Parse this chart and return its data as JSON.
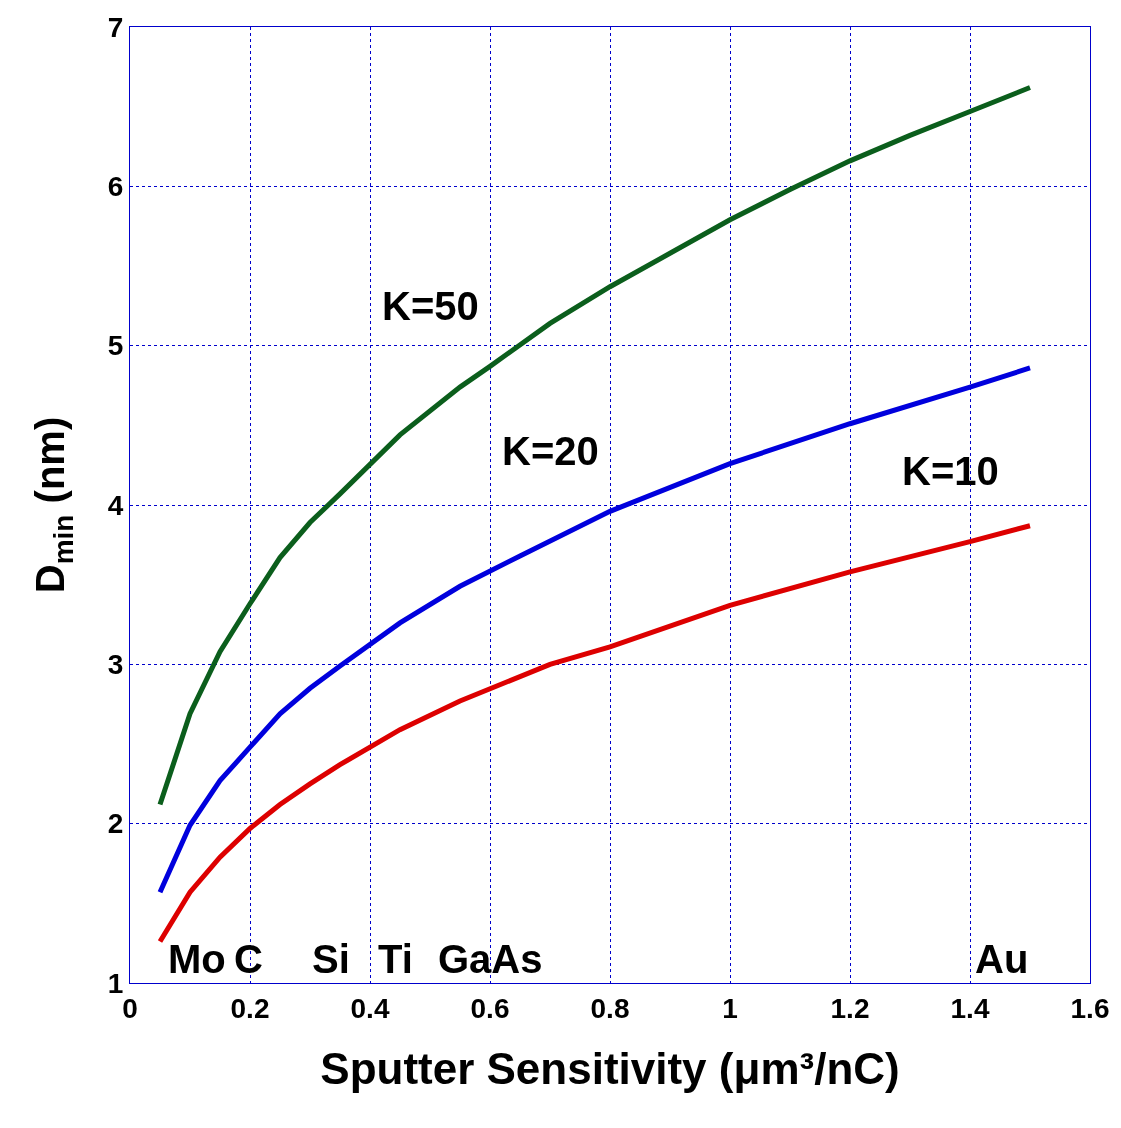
{
  "chart_data": {
    "type": "line",
    "xlabel": "Sputter Sensitivity (μm³/nC)",
    "ylabel": "D$_{min}$ (nm)",
    "xlim": [
      0,
      1.6
    ],
    "xticks": [
      0,
      0.2,
      0.4,
      0.6,
      0.8,
      1,
      1.2,
      1.4,
      1.6
    ],
    "ylim": [
      1,
      7
    ],
    "yticks": [
      1,
      2,
      3,
      4,
      5,
      6,
      7
    ],
    "grid": true,
    "line_style": "solid",
    "series": [
      {
        "name": "K=50",
        "color": "#0b5e1c",
        "x": [
          0.05,
          0.1,
          0.15,
          0.2,
          0.25,
          0.3,
          0.35,
          0.45,
          0.55,
          0.6,
          0.7,
          0.8,
          0.9,
          1.0,
          1.1,
          1.2,
          1.3,
          1.4,
          1.5
        ],
        "values": [
          2.12,
          2.69,
          3.08,
          3.38,
          3.67,
          3.89,
          4.07,
          4.44,
          4.74,
          4.87,
          5.14,
          5.37,
          5.58,
          5.79,
          5.98,
          6.16,
          6.32,
          6.47,
          6.62
        ]
      },
      {
        "name": "K=20",
        "color": "#0000dd",
        "x": [
          0.05,
          0.1,
          0.15,
          0.2,
          0.25,
          0.3,
          0.35,
          0.45,
          0.55,
          0.65,
          0.8,
          1.0,
          1.2,
          1.4,
          1.5
        ],
        "values": [
          1.57,
          1.99,
          2.27,
          2.48,
          2.69,
          2.85,
          2.99,
          3.26,
          3.49,
          3.68,
          3.96,
          4.26,
          4.51,
          4.74,
          4.86
        ]
      },
      {
        "name": "K=10",
        "color": "#dd0000",
        "x": [
          0.05,
          0.1,
          0.15,
          0.2,
          0.25,
          0.3,
          0.35,
          0.45,
          0.55,
          0.7,
          0.8,
          1.0,
          1.2,
          1.4,
          1.5
        ],
        "values": [
          1.26,
          1.57,
          1.79,
          1.97,
          2.12,
          2.25,
          2.37,
          2.59,
          2.77,
          3.0,
          3.11,
          3.37,
          3.58,
          3.77,
          3.87
        ]
      }
    ],
    "annotations": [
      "Mo",
      "C",
      "Si",
      "Ti",
      "GaAs",
      "Au"
    ]
  }
}
